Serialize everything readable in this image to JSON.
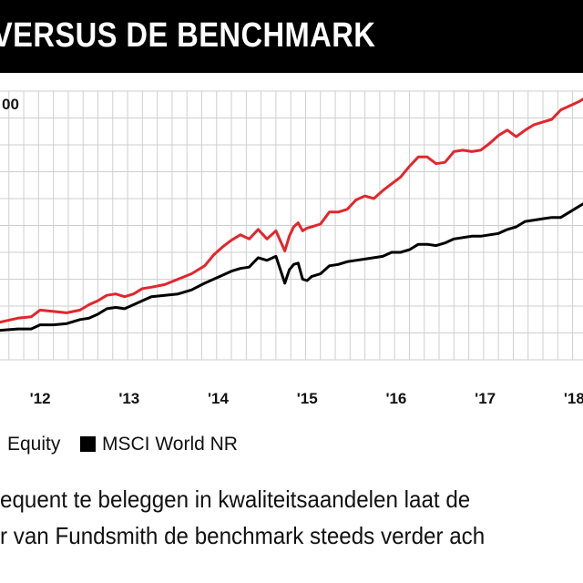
{
  "header": {
    "title": "TH VERSUS DE BENCHMARK"
  },
  "chart_data": {
    "type": "line",
    "title": "TH VERSUS DE BENCHMARK",
    "y_axis_label_fragment": "00",
    "xlabel": "",
    "ylabel": "",
    "grid": true,
    "x_ticks": [
      "'12",
      "'13",
      "'14",
      "'15",
      "'16",
      "'17",
      "'18"
    ],
    "xlim": [
      2011.6,
      2018.15
    ],
    "ylim": [
      0,
      10
    ],
    "series": [
      {
        "name": "Equity",
        "color": "#e3262d",
        "x": [
          2011.6,
          2011.8,
          2011.95,
          2012.05,
          2012.2,
          2012.35,
          2012.5,
          2012.6,
          2012.7,
          2012.8,
          2012.9,
          2013.0,
          2013.1,
          2013.2,
          2013.3,
          2013.45,
          2013.6,
          2013.75,
          2013.9,
          2014.0,
          2014.1,
          2014.2,
          2014.3,
          2014.4,
          2014.5,
          2014.6,
          2014.7,
          2014.8,
          2014.85,
          2014.9,
          2014.95,
          2015.0,
          2015.05,
          2015.1,
          2015.2,
          2015.3,
          2015.4,
          2015.5,
          2015.6,
          2015.7,
          2015.8,
          2015.9,
          2016.0,
          2016.1,
          2016.2,
          2016.3,
          2016.4,
          2016.5,
          2016.6,
          2016.7,
          2016.8,
          2016.9,
          2017.0,
          2017.1,
          2017.2,
          2017.3,
          2017.4,
          2017.5,
          2017.6,
          2017.7,
          2017.8,
          2017.9,
          2018.0,
          2018.1,
          2018.15
        ],
        "values": [
          1.4,
          1.55,
          1.6,
          1.85,
          1.8,
          1.75,
          1.85,
          2.05,
          2.2,
          2.4,
          2.45,
          2.35,
          2.45,
          2.65,
          2.7,
          2.8,
          3.0,
          3.2,
          3.5,
          3.9,
          4.2,
          4.45,
          4.65,
          4.5,
          4.85,
          4.5,
          4.8,
          4.05,
          4.6,
          4.95,
          5.1,
          4.8,
          4.9,
          4.95,
          5.05,
          5.5,
          5.5,
          5.6,
          5.95,
          6.1,
          6.0,
          6.3,
          6.55,
          6.8,
          7.2,
          7.55,
          7.55,
          7.3,
          7.35,
          7.75,
          7.8,
          7.75,
          7.8,
          8.05,
          8.35,
          8.55,
          8.3,
          8.55,
          8.75,
          8.85,
          8.95,
          9.3,
          9.45,
          9.6,
          9.7
        ]
      },
      {
        "name": "MSCI World NR",
        "color": "#000000",
        "x": [
          2011.6,
          2011.8,
          2011.95,
          2012.05,
          2012.2,
          2012.35,
          2012.5,
          2012.6,
          2012.7,
          2012.8,
          2012.9,
          2013.0,
          2013.1,
          2013.2,
          2013.3,
          2013.45,
          2013.6,
          2013.75,
          2013.9,
          2014.0,
          2014.1,
          2014.2,
          2014.3,
          2014.4,
          2014.5,
          2014.6,
          2014.7,
          2014.8,
          2014.85,
          2014.9,
          2014.95,
          2015.0,
          2015.05,
          2015.1,
          2015.2,
          2015.3,
          2015.4,
          2015.5,
          2015.6,
          2015.7,
          2015.8,
          2015.9,
          2016.0,
          2016.1,
          2016.2,
          2016.3,
          2016.4,
          2016.5,
          2016.6,
          2016.7,
          2016.8,
          2016.9,
          2017.0,
          2017.1,
          2017.2,
          2017.3,
          2017.4,
          2017.5,
          2017.6,
          2017.7,
          2017.8,
          2017.9,
          2018.0,
          2018.1,
          2018.15
        ],
        "values": [
          1.1,
          1.15,
          1.15,
          1.3,
          1.3,
          1.35,
          1.5,
          1.55,
          1.7,
          1.9,
          1.95,
          1.9,
          2.05,
          2.2,
          2.35,
          2.4,
          2.45,
          2.6,
          2.85,
          3.0,
          3.15,
          3.3,
          3.4,
          3.45,
          3.8,
          3.7,
          3.85,
          2.85,
          3.35,
          3.55,
          3.6,
          3.0,
          2.95,
          3.1,
          3.2,
          3.5,
          3.55,
          3.65,
          3.7,
          3.75,
          3.8,
          3.85,
          4.0,
          4.0,
          4.1,
          4.3,
          4.3,
          4.25,
          4.35,
          4.5,
          4.55,
          4.6,
          4.6,
          4.65,
          4.7,
          4.85,
          4.95,
          5.15,
          5.2,
          5.25,
          5.3,
          5.3,
          5.5,
          5.7,
          5.8
        ]
      }
    ]
  },
  "legend": {
    "items": [
      "Equity",
      "MSCI World NR"
    ]
  },
  "caption": {
    "line1": "equent te beleggen in kwaliteitsaandelen laat de",
    "line2": "r van Fundsmith de benchmark steeds verder ach"
  }
}
